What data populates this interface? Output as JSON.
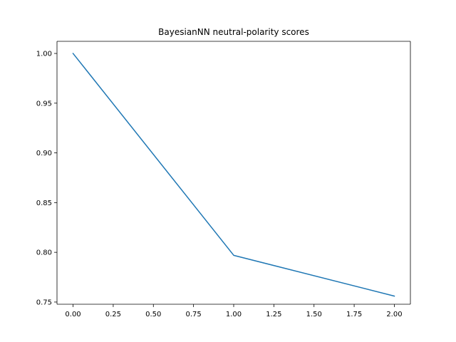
{
  "chart_data": {
    "type": "line",
    "title": "BayesianNN neutral-polarity scores",
    "xlabel": "",
    "ylabel": "",
    "x": [
      0,
      1,
      2
    ],
    "series": [
      {
        "values": [
          1.0,
          0.797,
          0.756
        ],
        "color": "#1f77b4"
      }
    ],
    "xlim": [
      -0.1,
      2.1
    ],
    "ylim": [
      0.7478,
      1.0122
    ],
    "xticks": [
      0.0,
      0.25,
      0.5,
      0.75,
      1.0,
      1.25,
      1.5,
      1.75,
      2.0
    ],
    "xtick_labels": [
      "0.00",
      "0.25",
      "0.50",
      "0.75",
      "1.00",
      "1.25",
      "1.50",
      "1.75",
      "2.00"
    ],
    "yticks": [
      0.75,
      0.8,
      0.85,
      0.9,
      0.95,
      1.0
    ],
    "ytick_labels": [
      "0.75",
      "0.80",
      "0.85",
      "0.90",
      "0.95",
      "1.00"
    ],
    "grid": false,
    "legend": false
  }
}
